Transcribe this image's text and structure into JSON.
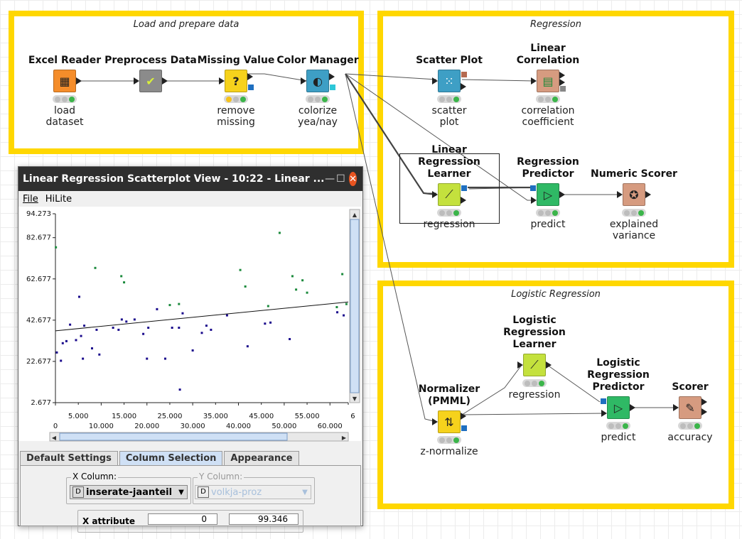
{
  "annotations": {
    "load": "Load and prepare data",
    "regression": "Regression",
    "logistic": "Logistic Regression"
  },
  "nodes": {
    "excel_reader": {
      "title": "Excel Reader",
      "label": "load\ndataset",
      "color": "#f58d2a",
      "icon": "excel-reader-icon"
    },
    "preprocess": {
      "title": "Preprocess Data",
      "label": "",
      "color": "#8b8b8b",
      "icon": "metanode-check-icon"
    },
    "missing_value": {
      "title": "Missing Value",
      "label": "remove\nmissing",
      "color": "#f6d21c",
      "icon": "question-icon"
    },
    "color_manager": {
      "title": "Color Manager",
      "label": "colorize\nyea/nay",
      "color": "#3e9fc5",
      "icon": "color-drop-icon"
    },
    "scatter_plot": {
      "title": "Scatter Plot",
      "label": "scatter\nplot",
      "color": "#3e9fc5",
      "icon": "scatter-icon"
    },
    "linear_correlation": {
      "title": "Linear Correlation",
      "label": "correlation\ncoefficient",
      "color": "#d69b80",
      "icon": "correlation-icon"
    },
    "lr_learner": {
      "title": "Linear Regression\nLearner",
      "label": "regression",
      "color": "#c4e13d",
      "icon": "learner-icon"
    },
    "reg_predictor": {
      "title": "Regression\nPredictor",
      "label": "predict",
      "color": "#2fb965",
      "icon": "predictor-icon"
    },
    "numeric_scorer": {
      "title": "Numeric Scorer",
      "label": "explained\nvariance",
      "color": "#d69b80",
      "icon": "scorer-icon"
    },
    "log_learner": {
      "title": "Logistic\nRegression Learner",
      "label": "regression",
      "color": "#c4e13d",
      "icon": "learner-icon"
    },
    "log_predictor": {
      "title": "Logistic Regression\nPredictor",
      "label": "predict",
      "color": "#2fb965",
      "icon": "predictor-icon"
    },
    "normalizer": {
      "title": "Normalizer (PMML)",
      "label": "z-normalize",
      "color": "#f6d21c",
      "icon": "normalizer-icon"
    },
    "scorer": {
      "title": "Scorer",
      "label": "accuracy",
      "color": "#d69b80",
      "icon": "scorer-icon"
    }
  },
  "window": {
    "title": "Linear Regression Scatterplot View - 10:22 - Linear ...",
    "menu": [
      "File",
      "HiLite"
    ],
    "tabs": [
      "Default Settings",
      "Column Selection",
      "Appearance"
    ],
    "x_column_label": "X Column:",
    "y_column_label": "Y Column:",
    "x_column_value": "inserate-jaanteil",
    "y_column_value": "volkja-proz",
    "x_attribute_label": "X attribute",
    "x_attr_min": "0",
    "x_attr_max": "99.346"
  },
  "chart_data": {
    "type": "scatter",
    "ylim": [
      2.677,
      94.273
    ],
    "xlim": [
      0,
      64
    ],
    "y_ticks": [
      "94.273",
      "82.677",
      "62.677",
      "42.677",
      "22.677",
      "2.677"
    ],
    "x_ticks_row1": [
      "5.000",
      "15.000",
      "25.000",
      "35.000",
      "45.000",
      "55.000",
      "6"
    ],
    "x_ticks_row2": [
      "0",
      "10.000",
      "20.000",
      "30.000",
      "40.000",
      "50.000",
      "60.000"
    ],
    "regression_line": [
      [
        0,
        37.5
      ],
      [
        64,
        51.5
      ]
    ],
    "series": [
      {
        "color": "#1a0a8c",
        "points": [
          [
            0.3,
            27
          ],
          [
            1.2,
            23
          ],
          [
            1.6,
            31.5
          ],
          [
            2.4,
            32.5
          ],
          [
            3.2,
            40.5
          ],
          [
            4.5,
            33
          ],
          [
            5.2,
            54
          ],
          [
            5.6,
            35
          ],
          [
            6.0,
            24
          ],
          [
            6.3,
            40
          ],
          [
            8.0,
            29
          ],
          [
            9.0,
            38
          ],
          [
            9.6,
            26
          ],
          [
            12.6,
            39
          ],
          [
            13.8,
            38
          ],
          [
            14.5,
            43
          ],
          [
            15.5,
            42
          ],
          [
            17.3,
            43
          ],
          [
            19.2,
            36
          ],
          [
            20.0,
            24
          ],
          [
            20.3,
            39
          ],
          [
            22.2,
            48
          ],
          [
            24.0,
            24
          ],
          [
            25.5,
            39
          ],
          [
            27.0,
            39
          ],
          [
            27.2,
            9
          ],
          [
            27.8,
            46
          ],
          [
            30.0,
            28
          ],
          [
            32.0,
            36.5
          ],
          [
            33.0,
            40
          ],
          [
            34.0,
            38
          ],
          [
            37.5,
            45
          ],
          [
            42.0,
            30
          ],
          [
            45.8,
            41
          ],
          [
            47.0,
            41.5
          ],
          [
            51.2,
            33.5
          ],
          [
            61.6,
            46.5
          ],
          [
            63.0,
            45
          ]
        ]
      },
      {
        "color": "#1b8a3c",
        "points": [
          [
            0.1,
            78
          ],
          [
            8.7,
            68
          ],
          [
            14.4,
            64
          ],
          [
            15.0,
            61
          ],
          [
            25.0,
            50
          ],
          [
            27.0,
            50.5
          ],
          [
            40.4,
            67
          ],
          [
            41.5,
            59
          ],
          [
            46.5,
            49.5
          ],
          [
            49.0,
            85
          ],
          [
            51.8,
            64
          ],
          [
            52.6,
            57.5
          ],
          [
            54.0,
            62
          ],
          [
            55.0,
            56
          ],
          [
            61.5,
            49
          ],
          [
            62.7,
            65
          ],
          [
            63.6,
            50.5
          ]
        ]
      }
    ]
  }
}
